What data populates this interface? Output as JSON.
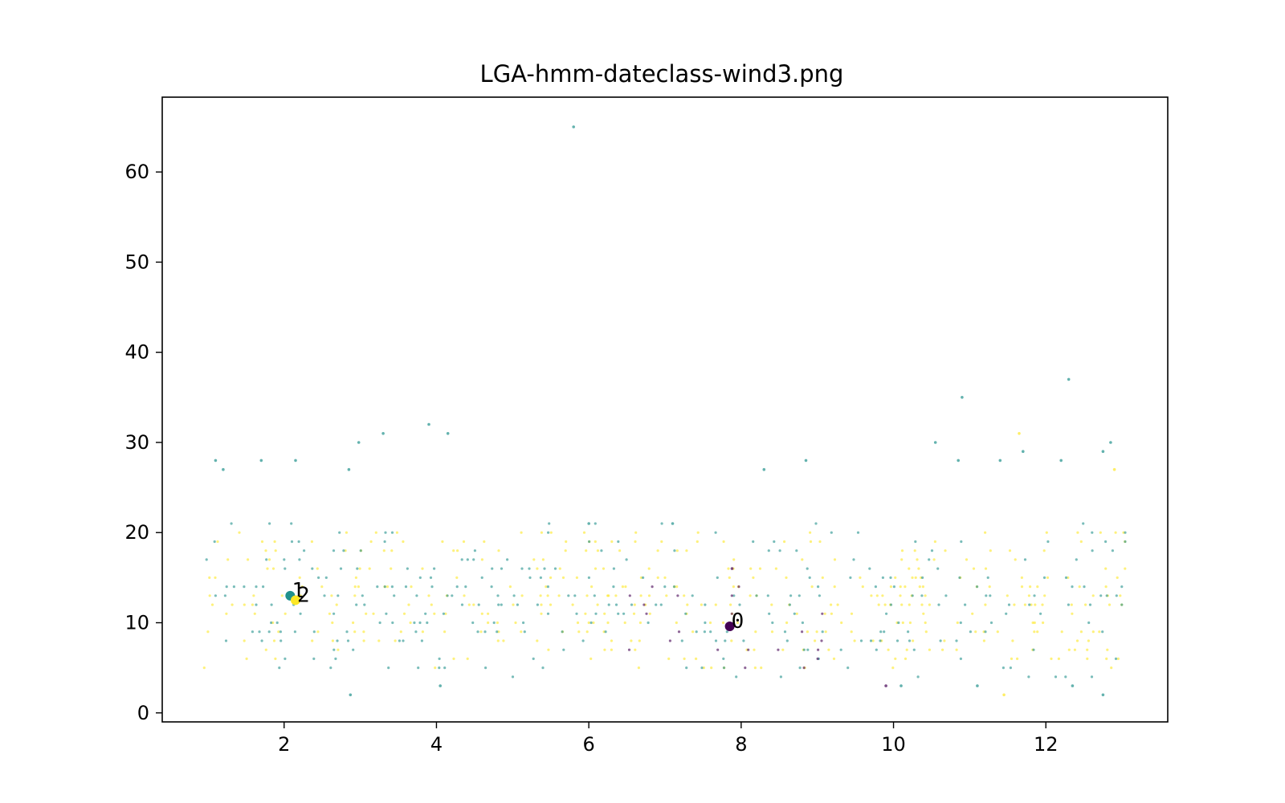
{
  "chart_data": {
    "type": "scatter",
    "title": "LGA-hmm-dateclass-wind3.png",
    "xlabel": "",
    "ylabel": "",
    "xlim": [
      0.4,
      13.6
    ],
    "ylim": [
      -1.0,
      68.3
    ],
    "xticks": [
      2,
      4,
      6,
      8,
      10,
      12
    ],
    "yticks": [
      0,
      10,
      20,
      30,
      40,
      50,
      60
    ],
    "grid": false,
    "legend": "none",
    "colormap": "viridis",
    "class_colors": {
      "0": "#440154",
      "1": "#21918c",
      "2": "#fde725"
    },
    "point_groups": [
      {
        "class": "2",
        "x_range": [
          1.0,
          13.0
        ],
        "y_range": [
          5,
          20
        ],
        "step_x": 0.1,
        "density": 0.3
      },
      {
        "class": "1",
        "x_range": [
          1.0,
          13.0
        ],
        "y_range": [
          4,
          21
        ],
        "step_x": 0.1,
        "density": 0.2
      },
      {
        "class": "0",
        "x_range": [
          6.5,
          9.5
        ],
        "y_range": [
          5,
          14
        ],
        "step_x": 0.1,
        "density": 0.12
      }
    ],
    "outliers": [
      {
        "x": 5.8,
        "y": 65,
        "class": "1"
      },
      {
        "x": 12.3,
        "y": 37,
        "class": "1"
      },
      {
        "x": 10.9,
        "y": 35,
        "class": "1"
      },
      {
        "x": 3.9,
        "y": 32,
        "class": "1"
      },
      {
        "x": 3.3,
        "y": 31,
        "class": "1"
      },
      {
        "x": 4.15,
        "y": 31,
        "class": "1"
      },
      {
        "x": 11.65,
        "y": 31,
        "class": "2"
      },
      {
        "x": 2.98,
        "y": 30,
        "class": "1"
      },
      {
        "x": 10.55,
        "y": 30,
        "class": "1"
      },
      {
        "x": 12.85,
        "y": 30,
        "class": "1"
      },
      {
        "x": 11.7,
        "y": 29,
        "class": "1"
      },
      {
        "x": 12.75,
        "y": 29,
        "class": "1"
      },
      {
        "x": 1.1,
        "y": 28,
        "class": "1"
      },
      {
        "x": 1.7,
        "y": 28,
        "class": "1"
      },
      {
        "x": 2.15,
        "y": 28,
        "class": "1"
      },
      {
        "x": 8.85,
        "y": 28,
        "class": "1"
      },
      {
        "x": 10.85,
        "y": 28,
        "class": "1"
      },
      {
        "x": 11.4,
        "y": 28,
        "class": "1"
      },
      {
        "x": 12.2,
        "y": 28,
        "class": "1"
      },
      {
        "x": 1.2,
        "y": 27,
        "class": "1"
      },
      {
        "x": 2.85,
        "y": 27,
        "class": "1"
      },
      {
        "x": 8.3,
        "y": 27,
        "class": "1"
      },
      {
        "x": 12.9,
        "y": 27,
        "class": "2"
      },
      {
        "x": 6.0,
        "y": 21,
        "class": "1"
      },
      {
        "x": 7.1,
        "y": 21,
        "class": "1"
      },
      {
        "x": 2.87,
        "y": 2,
        "class": "1"
      },
      {
        "x": 11.45,
        "y": 2,
        "class": "2"
      },
      {
        "x": 12.75,
        "y": 2,
        "class": "1"
      },
      {
        "x": 4.05,
        "y": 3,
        "class": "1"
      },
      {
        "x": 9.9,
        "y": 3,
        "class": "0"
      },
      {
        "x": 10.1,
        "y": 3,
        "class": "1"
      },
      {
        "x": 11.1,
        "y": 3,
        "class": "1"
      },
      {
        "x": 12.35,
        "y": 3,
        "class": "1"
      },
      {
        "x": 7.88,
        "y": 16,
        "class": "0"
      }
    ],
    "centroids": [
      {
        "label": "0",
        "x": 7.85,
        "y": 9.6,
        "class": "0"
      },
      {
        "label": "1",
        "x": 2.08,
        "y": 13.0,
        "class": "1"
      },
      {
        "label": "2",
        "x": 2.15,
        "y": 12.5,
        "class": "2"
      }
    ]
  }
}
